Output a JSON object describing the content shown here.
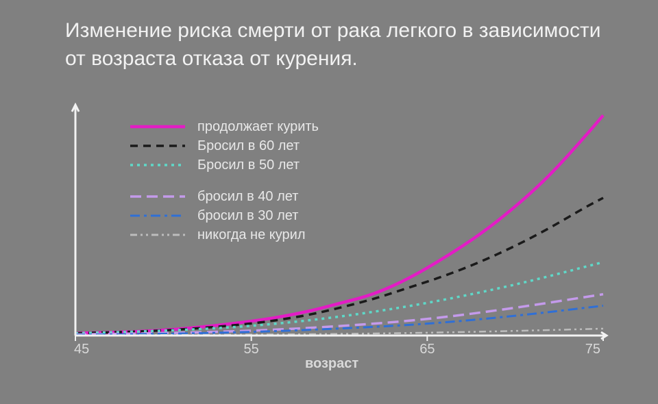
{
  "title": "Изменение риска смерти от рака легкого в зависимости от возраста отказа от курения.",
  "chart": {
    "type": "line",
    "background_color": "#808080",
    "axis_color": "#f2f2f2",
    "axis_line_width": 3,
    "tick_color": "#e6e6e6",
    "tick_fontsize": 20,
    "xlabel": "возраст",
    "xlabel_fontsize": 20,
    "xlabel_fontweight": "700",
    "xlim": [
      45,
      75
    ],
    "ylim": [
      0,
      100
    ],
    "xticks": [
      45,
      55,
      65,
      75
    ],
    "series": [
      {
        "label": "продолжает курить",
        "color": "#e31cc5",
        "width": 4.5,
        "dash": "",
        "x": [
          45,
          50,
          55,
          58,
          60,
          62,
          64,
          66,
          68,
          70,
          72,
          74,
          75
        ],
        "y": [
          1,
          2,
          6,
          10,
          14,
          18,
          25,
          34,
          44,
          56,
          70,
          87,
          96
        ]
      },
      {
        "label": "Бросил в 60 лет",
        "color": "#1a1a1a",
        "width": 3.5,
        "dash": "11 8",
        "x": [
          45,
          50,
          55,
          58,
          60,
          62,
          64,
          66,
          68,
          70,
          72,
          74,
          75
        ],
        "y": [
          1,
          2,
          5,
          8.5,
          12,
          16,
          21,
          26,
          32,
          39,
          47,
          56,
          60
        ]
      },
      {
        "label": "Бросил в 50 лет",
        "color": "#5fd8c8",
        "width": 3.5,
        "dash": "4 6",
        "x": [
          45,
          50,
          55,
          60,
          65,
          70,
          75
        ],
        "y": [
          1,
          2,
          4,
          8,
          14,
          22,
          32
        ]
      },
      {
        "label": "бросил в 40 лет",
        "color": "#c49aeb",
        "width": 3.5,
        "dash": "16 8",
        "x": [
          45,
          50,
          55,
          60,
          65,
          70,
          75
        ],
        "y": [
          0.5,
          1,
          2,
          4,
          7,
          12,
          18
        ]
      },
      {
        "label": "бросил в 30 лет",
        "color": "#2f6fd6",
        "width": 3,
        "dash": "14 6 4 6",
        "x": [
          45,
          50,
          55,
          60,
          65,
          70,
          75
        ],
        "y": [
          0.3,
          0.7,
          1.5,
          3,
          5,
          8.5,
          13
        ]
      },
      {
        "label": "никогда не курил",
        "color": "#bdbdbd",
        "width": 2.5,
        "dash": "10 5 3 5 3 5",
        "x": [
          45,
          50,
          55,
          60,
          65,
          70,
          75
        ],
        "y": [
          0.1,
          0.2,
          0.4,
          0.7,
          1.2,
          2,
          3
        ]
      }
    ],
    "legend_spacer_after_index": 2
  }
}
